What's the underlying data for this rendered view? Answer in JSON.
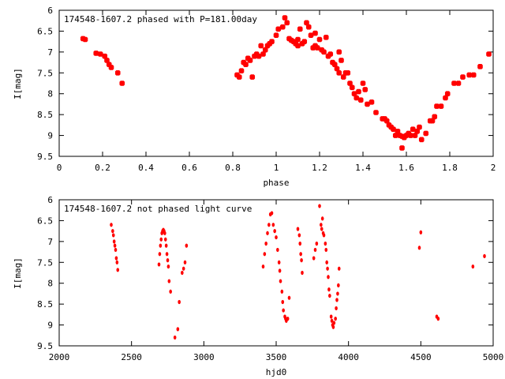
{
  "chart_data": [
    {
      "type": "scatter",
      "title": "174548-1607.2 phased with P=181.00day",
      "xlabel": "phase",
      "ylabel": "I[mag]",
      "xlim": [
        0,
        2
      ],
      "ylim": [
        6,
        9.5
      ],
      "y_inverted": true,
      "grid": false,
      "marker": "filled-square-star",
      "marker_color": "#ff0000",
      "x_ticks": [
        "0",
        "0.2",
        "0.4",
        "0.6",
        "0.8",
        "1",
        "1.2",
        "1.4",
        "1.6",
        "1.8",
        "2"
      ],
      "y_ticks": [
        "6",
        "6.5",
        "7",
        "7.5",
        "8",
        "8.5",
        "9",
        "9.5"
      ],
      "points": [
        [
          0.11,
          6.68
        ],
        [
          0.12,
          6.7
        ],
        [
          0.17,
          7.03
        ],
        [
          0.19,
          7.05
        ],
        [
          0.21,
          7.1
        ],
        [
          0.22,
          7.2
        ],
        [
          0.23,
          7.3
        ],
        [
          0.24,
          7.37
        ],
        [
          0.27,
          7.5
        ],
        [
          0.29,
          7.75
        ],
        [
          0.82,
          7.55
        ],
        [
          0.83,
          7.6
        ],
        [
          0.84,
          7.45
        ],
        [
          0.85,
          7.25
        ],
        [
          0.86,
          7.3
        ],
        [
          0.87,
          7.15
        ],
        [
          0.88,
          7.2
        ],
        [
          0.89,
          7.6
        ],
        [
          0.9,
          7.1
        ],
        [
          0.91,
          7.05
        ],
        [
          0.92,
          7.1
        ],
        [
          0.93,
          6.85
        ],
        [
          0.94,
          7.05
        ],
        [
          0.95,
          6.95
        ],
        [
          0.96,
          6.85
        ],
        [
          0.97,
          6.8
        ],
        [
          0.98,
          6.75
        ],
        [
          1.0,
          6.6
        ],
        [
          1.01,
          6.45
        ],
        [
          1.03,
          6.4
        ],
        [
          1.04,
          6.18
        ],
        [
          1.05,
          6.3
        ],
        [
          1.06,
          6.68
        ],
        [
          1.07,
          6.72
        ],
        [
          1.08,
          6.75
        ],
        [
          1.09,
          6.8
        ],
        [
          1.1,
          6.85
        ],
        [
          1.1,
          6.7
        ],
        [
          1.11,
          6.45
        ],
        [
          1.12,
          6.8
        ],
        [
          1.13,
          6.75
        ],
        [
          1.14,
          6.3
        ],
        [
          1.15,
          6.4
        ],
        [
          1.16,
          6.6
        ],
        [
          1.17,
          6.9
        ],
        [
          1.18,
          6.85
        ],
        [
          1.18,
          6.55
        ],
        [
          1.19,
          6.9
        ],
        [
          1.2,
          6.7
        ],
        [
          1.21,
          6.95
        ],
        [
          1.22,
          7.0
        ],
        [
          1.23,
          6.65
        ],
        [
          1.24,
          7.1
        ],
        [
          1.25,
          7.05
        ],
        [
          1.26,
          7.25
        ],
        [
          1.27,
          7.3
        ],
        [
          1.28,
          7.4
        ],
        [
          1.29,
          7.0
        ],
        [
          1.29,
          7.5
        ],
        [
          1.3,
          7.2
        ],
        [
          1.31,
          7.6
        ],
        [
          1.32,
          7.5
        ],
        [
          1.33,
          7.5
        ],
        [
          1.34,
          7.75
        ],
        [
          1.35,
          7.85
        ],
        [
          1.36,
          8.0
        ],
        [
          1.37,
          8.1
        ],
        [
          1.38,
          7.95
        ],
        [
          1.39,
          8.15
        ],
        [
          1.4,
          7.75
        ],
        [
          1.41,
          7.9
        ],
        [
          1.42,
          8.25
        ],
        [
          1.44,
          8.2
        ],
        [
          1.46,
          8.45
        ],
        [
          1.49,
          8.6
        ],
        [
          1.5,
          8.6
        ],
        [
          1.51,
          8.65
        ],
        [
          1.52,
          8.75
        ],
        [
          1.53,
          8.8
        ],
        [
          1.54,
          8.85
        ],
        [
          1.55,
          9.0
        ],
        [
          1.56,
          8.9
        ],
        [
          1.57,
          9.0
        ],
        [
          1.58,
          9.02
        ],
        [
          1.58,
          9.3
        ],
        [
          1.59,
          9.05
        ],
        [
          1.6,
          9.0
        ],
        [
          1.61,
          8.95
        ],
        [
          1.62,
          9.0
        ],
        [
          1.63,
          8.85
        ],
        [
          1.64,
          9.0
        ],
        [
          1.65,
          8.9
        ],
        [
          1.66,
          8.8
        ],
        [
          1.67,
          9.1
        ],
        [
          1.69,
          8.95
        ],
        [
          1.71,
          8.65
        ],
        [
          1.72,
          8.65
        ],
        [
          1.73,
          8.55
        ],
        [
          1.74,
          8.3
        ],
        [
          1.76,
          8.3
        ],
        [
          1.78,
          8.1
        ],
        [
          1.79,
          8.0
        ],
        [
          1.82,
          7.75
        ],
        [
          1.84,
          7.75
        ],
        [
          1.86,
          7.6
        ],
        [
          1.89,
          7.55
        ],
        [
          1.91,
          7.55
        ],
        [
          1.94,
          7.35
        ],
        [
          1.98,
          7.05
        ]
      ]
    },
    {
      "type": "scatter",
      "title": "174548-1607.2 not phased light curve",
      "xlabel": "hjd0",
      "ylabel": "I[mag]",
      "xlim": [
        2000,
        5000
      ],
      "ylim": [
        6,
        9.5
      ],
      "y_inverted": true,
      "grid": false,
      "marker": "filled-circle",
      "marker_color": "#ff0000",
      "x_ticks": [
        "2000",
        "2500",
        "3000",
        "3500",
        "4000",
        "4500",
        "5000"
      ],
      "y_ticks": [
        "6",
        "6.5",
        "7",
        "7.5",
        "8",
        "8.5",
        "9",
        "9.5"
      ],
      "points": [
        [
          2360,
          6.6
        ],
        [
          2370,
          6.75
        ],
        [
          2375,
          6.85
        ],
        [
          2380,
          7.0
        ],
        [
          2385,
          7.1
        ],
        [
          2390,
          7.2
        ],
        [
          2395,
          7.4
        ],
        [
          2400,
          7.5
        ],
        [
          2405,
          7.68
        ],
        [
          2690,
          7.55
        ],
        [
          2695,
          7.3
        ],
        [
          2700,
          7.1
        ],
        [
          2705,
          6.95
        ],
        [
          2710,
          6.8
        ],
        [
          2715,
          6.75
        ],
        [
          2720,
          6.72
        ],
        [
          2725,
          6.75
        ],
        [
          2730,
          6.8
        ],
        [
          2735,
          6.95
        ],
        [
          2740,
          7.1
        ],
        [
          2745,
          7.3
        ],
        [
          2750,
          7.45
        ],
        [
          2755,
          7.6
        ],
        [
          2760,
          7.95
        ],
        [
          2770,
          8.2
        ],
        [
          2800,
          9.3
        ],
        [
          2820,
          9.1
        ],
        [
          2830,
          8.45
        ],
        [
          2850,
          7.75
        ],
        [
          2860,
          7.65
        ],
        [
          2870,
          7.5
        ],
        [
          2880,
          7.1
        ],
        [
          3410,
          7.6
        ],
        [
          3420,
          7.3
        ],
        [
          3430,
          7.05
        ],
        [
          3440,
          6.8
        ],
        [
          3450,
          6.6
        ],
        [
          3460,
          6.35
        ],
        [
          3470,
          6.32
        ],
        [
          3480,
          6.6
        ],
        [
          3490,
          6.75
        ],
        [
          3500,
          6.9
        ],
        [
          3510,
          7.2
        ],
        [
          3520,
          7.5
        ],
        [
          3525,
          7.7
        ],
        [
          3530,
          7.95
        ],
        [
          3540,
          8.2
        ],
        [
          3545,
          8.45
        ],
        [
          3550,
          8.65
        ],
        [
          3560,
          8.8
        ],
        [
          3565,
          8.85
        ],
        [
          3570,
          8.9
        ],
        [
          3580,
          8.85
        ],
        [
          3590,
          8.35
        ],
        [
          3650,
          6.7
        ],
        [
          3660,
          6.85
        ],
        [
          3665,
          7.05
        ],
        [
          3670,
          7.3
        ],
        [
          3675,
          7.45
        ],
        [
          3680,
          7.75
        ],
        [
          3760,
          7.4
        ],
        [
          3770,
          7.2
        ],
        [
          3780,
          7.05
        ],
        [
          3800,
          6.15
        ],
        [
          3810,
          6.6
        ],
        [
          3815,
          6.7
        ],
        [
          3820,
          6.45
        ],
        [
          3825,
          6.8
        ],
        [
          3830,
          6.85
        ],
        [
          3840,
          7.05
        ],
        [
          3845,
          7.2
        ],
        [
          3850,
          7.5
        ],
        [
          3855,
          7.65
        ],
        [
          3860,
          7.85
        ],
        [
          3865,
          8.15
        ],
        [
          3870,
          8.3
        ],
        [
          3880,
          8.8
        ],
        [
          3885,
          8.9
        ],
        [
          3890,
          9.0
        ],
        [
          3895,
          9.05
        ],
        [
          3900,
          8.95
        ],
        [
          3910,
          8.85
        ],
        [
          3915,
          8.6
        ],
        [
          3920,
          8.4
        ],
        [
          3925,
          8.25
        ],
        [
          3930,
          8.05
        ],
        [
          3935,
          7.65
        ],
        [
          4490,
          7.15
        ],
        [
          4500,
          6.78
        ],
        [
          4610,
          8.8
        ],
        [
          4620,
          8.85
        ],
        [
          4860,
          7.6
        ],
        [
          4940,
          7.35
        ]
      ]
    }
  ]
}
